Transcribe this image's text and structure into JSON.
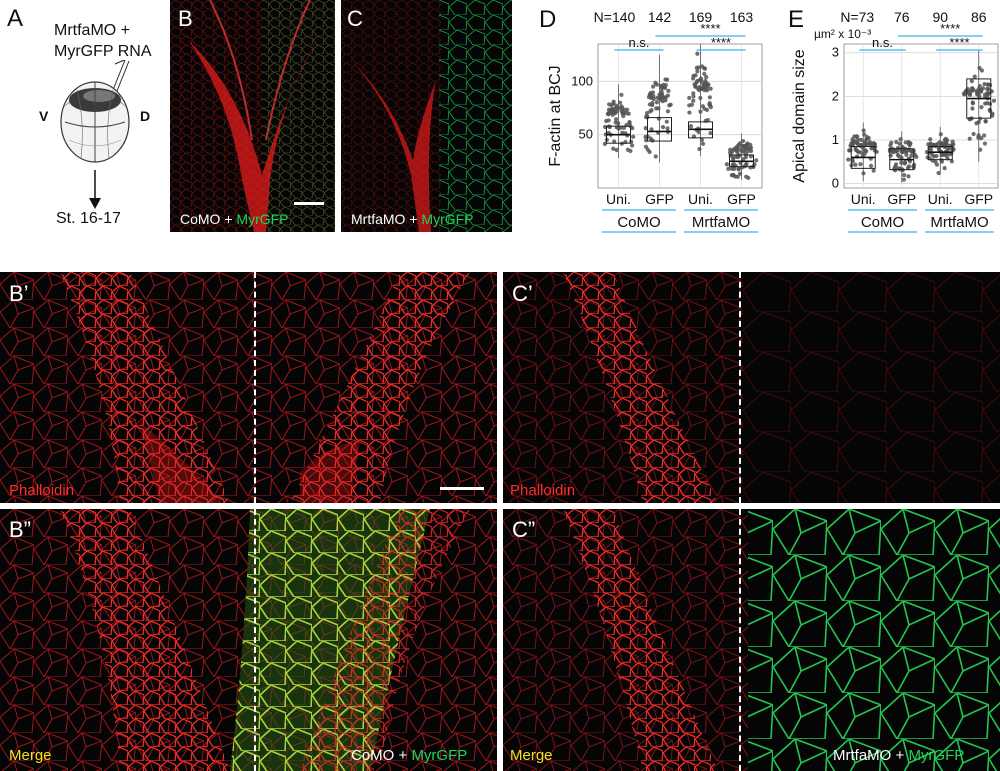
{
  "panel_a": {
    "label": "A",
    "injection_line1": "MrtfaMO +",
    "injection_line2": "MyrGFP RNA",
    "ventral": "V",
    "dorsal": "D",
    "stage": "St. 16-17"
  },
  "panel_b": {
    "label": "B",
    "caption_prefix": "CoMO + ",
    "caption_green": "MyrGFP"
  },
  "panel_c": {
    "label": "C",
    "caption_prefix": "MrtfaMO + ",
    "caption_green": "MyrGFP"
  },
  "panel_b1": {
    "label": "B’",
    "channel": "Phalloidin"
  },
  "panel_c1": {
    "label": "C’",
    "channel": "Phalloidin"
  },
  "panel_b2": {
    "label": "B”",
    "channel": "Merge",
    "caption_prefix": "CoMO + ",
    "caption_green": "MyrGFP"
  },
  "panel_c2": {
    "label": "C”",
    "channel": "Merge",
    "caption_prefix": "MrtfaMO + ",
    "caption_green": "MyrGFP"
  },
  "colors": {
    "phalloidin": "#ff2a2a",
    "gfp": "#1fd45a",
    "merge": "#f3e21a",
    "significance_bar": "#33b6e6"
  },
  "chart_data": [
    {
      "panel": "D",
      "type": "scatter",
      "style": "beeswarm with boxplot",
      "ylabel": "F-actin at BCJ",
      "yticks": [
        50,
        100
      ],
      "ylim": [
        0,
        135
      ],
      "grid": true,
      "categories": [
        "Uni.",
        "GFP",
        "Uni.",
        "GFP"
      ],
      "groups": [
        "CoMO",
        "MrtfaMO"
      ],
      "n_labels": [
        "N=140",
        "142",
        "169",
        "163"
      ],
      "series": [
        {
          "values": [
            50,
            53,
            55,
            25
          ],
          "q1": [
            42,
            44,
            47,
            20
          ],
          "q3": [
            58,
            66,
            62,
            31
          ],
          "min": [
            28,
            24,
            30,
            8
          ],
          "max": [
            97,
            125,
            135,
            51
          ]
        }
      ],
      "significance": [
        {
          "label": "n.s.",
          "between": [
            0,
            1
          ]
        },
        {
          "label": "****",
          "between": [
            1,
            3
          ]
        },
        {
          "label": "****",
          "between": [
            2,
            3
          ]
        }
      ]
    },
    {
      "panel": "E",
      "type": "scatter",
      "style": "beeswarm with boxplot",
      "ylabel": "Apical domain size",
      "yunit": "µm² x 10⁻³",
      "yticks": [
        0,
        1,
        2,
        3
      ],
      "ylim": [
        -0.1,
        3.2
      ],
      "grid": true,
      "categories": [
        "Uni.",
        "GFP",
        "Uni.",
        "GFP"
      ],
      "groups": [
        "CoMO",
        "MrtfaMO"
      ],
      "n_labels": [
        "N=73",
        "76",
        "90",
        "86"
      ],
      "series": [
        {
          "values": [
            0.6,
            0.55,
            0.72,
            1.95
          ],
          "q1": [
            0.35,
            0.32,
            0.55,
            1.5
          ],
          "q3": [
            0.85,
            0.8,
            0.85,
            2.4
          ],
          "min": [
            0.05,
            0.02,
            0.2,
            0.5
          ],
          "max": [
            1.4,
            1.2,
            1.3,
            3.05
          ]
        }
      ],
      "significance": [
        {
          "label": "n.s.",
          "between": [
            0,
            1
          ]
        },
        {
          "label": "****",
          "between": [
            1,
            3
          ]
        },
        {
          "label": "****",
          "between": [
            2,
            3
          ]
        }
      ]
    }
  ]
}
